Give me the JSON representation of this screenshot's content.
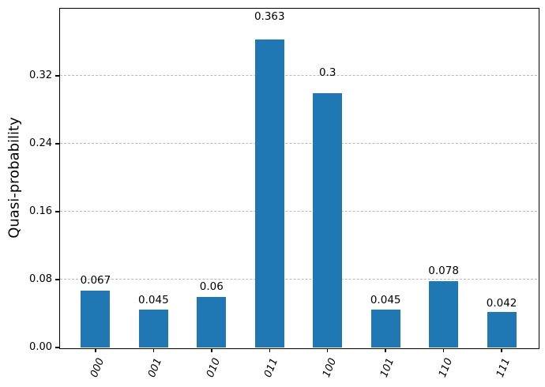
{
  "chart_data": {
    "type": "bar",
    "title": "",
    "xlabel": "",
    "ylabel": "Quasi-probability",
    "categories": [
      "000",
      "001",
      "010",
      "011",
      "100",
      "101",
      "110",
      "111"
    ],
    "values": [
      0.067,
      0.045,
      0.06,
      0.363,
      0.3,
      0.045,
      0.078,
      0.042
    ],
    "bar_labels": [
      "0.067",
      "0.045",
      "0.06",
      "0.363",
      "0.3",
      "0.045",
      "0.078",
      "0.042"
    ],
    "yticks": [
      {
        "value": 0.0,
        "label": "0.00"
      },
      {
        "value": 0.08,
        "label": "0.08"
      },
      {
        "value": 0.16,
        "label": "0.16"
      },
      {
        "value": 0.24,
        "label": "0.24"
      },
      {
        "value": 0.32,
        "label": "0.32"
      }
    ],
    "ylim": [
      0,
      0.4
    ],
    "bar_color": "#1f77b4",
    "grid": {
      "axis": "y",
      "linestyle": "dashed",
      "color": "#b9b9bf"
    },
    "legend_position": "none",
    "xtick_style": "italic rotated"
  }
}
